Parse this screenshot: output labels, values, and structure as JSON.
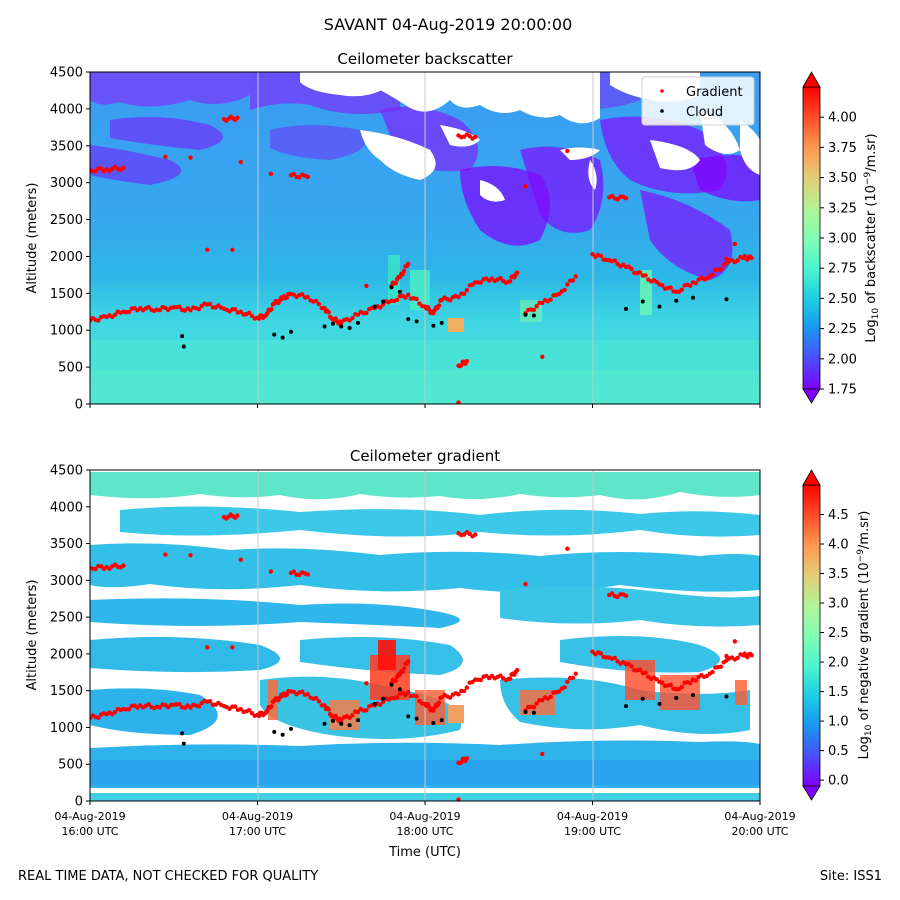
{
  "figure": {
    "title": "SAVANT 04-Aug-2019 20:00:00",
    "footer_left": "REAL TIME DATA, NOT CHECKED FOR QUALITY",
    "footer_right": "Site: ISS1"
  },
  "colors": {
    "gradient_marker": "#ff0000",
    "cloud_marker": "#000000",
    "gridline": "#c8c8c8",
    "rainbow": [
      "#8000ff",
      "#4b4dfc",
      "#1996f3",
      "#1ccee4",
      "#4ff4cf",
      "#80ffb4",
      "#b2f396",
      "#e4cd75",
      "#ff9752",
      "#ff4c28",
      "#ff0000"
    ]
  },
  "chart_data": [
    {
      "type": "heatmap",
      "title": "Ceilometer backscatter",
      "ylabel": "Altitude (meters)",
      "xlabel": "",
      "ylim": [
        0,
        4500
      ],
      "yticks": [
        "0",
        "500",
        "1000",
        "1500",
        "2000",
        "2500",
        "3000",
        "3500",
        "4000",
        "4500"
      ],
      "xlim_hours": [
        16,
        20
      ],
      "legend": {
        "position": "top-right",
        "entries": [
          "Gradient",
          "Cloud"
        ]
      },
      "colorbar": {
        "label_prefix": "Log",
        "label_sub": "10",
        "label_mid": " of backscatter (10",
        "label_sup": "−9",
        "label_suffix": "/m.sr)",
        "range": [
          1.75,
          4.25
        ],
        "ticks": [
          "1.75",
          "2.00",
          "2.25",
          "2.50",
          "2.75",
          "3.00",
          "3.25",
          "3.50",
          "3.75",
          "4.00"
        ]
      },
      "series": [
        {
          "name": "Gradient",
          "points": [
            [
              16.0,
              1130
            ],
            [
              16.1,
              1180
            ],
            [
              16.2,
              1250
            ],
            [
              16.3,
              1300
            ],
            [
              16.4,
              1280
            ],
            [
              16.5,
              1310
            ],
            [
              16.6,
              1270
            ],
            [
              16.7,
              1350
            ],
            [
              16.8,
              1290
            ],
            [
              16.9,
              1250
            ],
            [
              17.0,
              1170
            ],
            [
              17.05,
              1200
            ],
            [
              17.1,
              1360
            ],
            [
              17.15,
              1430
            ],
            [
              17.2,
              1490
            ],
            [
              17.3,
              1450
            ],
            [
              17.4,
              1300
            ],
            [
              17.45,
              1150
            ],
            [
              17.5,
              1100
            ],
            [
              17.6,
              1210
            ],
            [
              17.7,
              1300
            ],
            [
              17.8,
              1400
            ],
            [
              17.9,
              1480
            ],
            [
              18.0,
              1320
            ],
            [
              18.05,
              1230
            ],
            [
              18.1,
              1410
            ],
            [
              18.2,
              1450
            ],
            [
              18.3,
              1650
            ],
            [
              18.4,
              1700
            ],
            [
              18.5,
              1660
            ],
            [
              18.55,
              1780
            ],
            [
              18.6,
              1230
            ],
            [
              18.7,
              1370
            ],
            [
              18.8,
              1490
            ],
            [
              18.9,
              1730
            ],
            [
              19.0,
              2030
            ],
            [
              19.1,
              1950
            ],
            [
              19.2,
              1860
            ],
            [
              19.3,
              1740
            ],
            [
              19.4,
              1620
            ],
            [
              19.5,
              1520
            ],
            [
              19.6,
              1650
            ],
            [
              19.7,
              1730
            ],
            [
              19.8,
              1910
            ],
            [
              19.9,
              1980
            ],
            [
              19.95,
              1980
            ],
            [
              16.0,
              3170
            ],
            [
              16.1,
              3180
            ],
            [
              16.2,
              3200
            ],
            [
              16.45,
              3350
            ],
            [
              16.6,
              3340
            ],
            [
              16.7,
              2090
            ],
            [
              16.85,
              2090
            ],
            [
              16.8,
              3860
            ],
            [
              16.88,
              3880
            ],
            [
              16.9,
              3280
            ],
            [
              17.08,
              3120
            ],
            [
              17.2,
              3100
            ],
            [
              17.3,
              3080
            ],
            [
              18.2,
              3640
            ],
            [
              18.3,
              3620
            ],
            [
              18.6,
              2950
            ],
            [
              18.85,
              3430
            ],
            [
              19.1,
              2800
            ],
            [
              19.2,
              2790
            ],
            [
              18.2,
              520
            ],
            [
              18.25,
              580
            ],
            [
              18.7,
              640
            ],
            [
              18.2,
              20
            ],
            [
              17.8,
              1600
            ],
            [
              17.85,
              1720
            ],
            [
              17.9,
              1900
            ],
            [
              17.65,
              1600
            ],
            [
              19.85,
              2170
            ],
            [
              19.8,
              1970
            ]
          ]
        },
        {
          "name": "Cloud",
          "points": [
            [
              16.55,
              920
            ],
            [
              16.56,
              780
            ],
            [
              17.1,
              940
            ],
            [
              17.15,
              900
            ],
            [
              17.2,
              980
            ],
            [
              17.4,
              1050
            ],
            [
              17.45,
              1090
            ],
            [
              17.5,
              1050
            ],
            [
              17.55,
              1030
            ],
            [
              17.6,
              1100
            ],
            [
              17.7,
              1320
            ],
            [
              17.75,
              1390
            ],
            [
              17.8,
              1580
            ],
            [
              17.85,
              1520
            ],
            [
              17.9,
              1150
            ],
            [
              17.95,
              1120
            ],
            [
              18.05,
              1060
            ],
            [
              18.1,
              1100
            ],
            [
              18.6,
              1210
            ],
            [
              18.65,
              1200
            ],
            [
              19.2,
              1290
            ],
            [
              19.3,
              1390
            ],
            [
              19.4,
              1320
            ],
            [
              19.5,
              1400
            ],
            [
              19.6,
              1440
            ],
            [
              19.8,
              1420
            ]
          ]
        }
      ]
    },
    {
      "type": "heatmap",
      "title": "Ceilometer gradient",
      "ylabel": "Altitude (meters)",
      "xlabel": "Time (UTC)",
      "ylim": [
        0,
        4500
      ],
      "yticks": [
        "0",
        "500",
        "1000",
        "1500",
        "2000",
        "2500",
        "3000",
        "3500",
        "4000",
        "4500"
      ],
      "xlim_hours": [
        16,
        20
      ],
      "xticks": [
        {
          "hour": 16,
          "date": "04-Aug-2019",
          "time": "16:00 UTC"
        },
        {
          "hour": 17,
          "date": "04-Aug-2019",
          "time": "17:00 UTC"
        },
        {
          "hour": 18,
          "date": "04-Aug-2019",
          "time": "18:00 UTC"
        },
        {
          "hour": 19,
          "date": "04-Aug-2019",
          "time": "19:00 UTC"
        },
        {
          "hour": 20,
          "date": "04-Aug-2019",
          "time": "20:00 UTC"
        }
      ],
      "colorbar": {
        "label_prefix": "Log",
        "label_sub": "10",
        "label_mid": " of negative gradient (10",
        "label_sup": "−9",
        "label_suffix": "/m.sr)",
        "range": [
          -0.1,
          5.0
        ],
        "ticks": [
          "0.0",
          "0.5",
          "1.0",
          "1.5",
          "2.0",
          "2.5",
          "3.0",
          "3.5",
          "4.0",
          "4.5"
        ]
      },
      "series": [
        {
          "name": "Gradient",
          "points": [
            [
              16.0,
              1130
            ],
            [
              16.1,
              1180
            ],
            [
              16.2,
              1250
            ],
            [
              16.3,
              1300
            ],
            [
              16.4,
              1280
            ],
            [
              16.5,
              1310
            ],
            [
              16.6,
              1270
            ],
            [
              16.7,
              1350
            ],
            [
              16.8,
              1290
            ],
            [
              16.9,
              1250
            ],
            [
              17.0,
              1170
            ],
            [
              17.05,
              1200
            ],
            [
              17.1,
              1360
            ],
            [
              17.15,
              1430
            ],
            [
              17.2,
              1490
            ],
            [
              17.3,
              1450
            ],
            [
              17.4,
              1300
            ],
            [
              17.45,
              1150
            ],
            [
              17.5,
              1100
            ],
            [
              17.6,
              1210
            ],
            [
              17.7,
              1300
            ],
            [
              17.8,
              1400
            ],
            [
              17.9,
              1480
            ],
            [
              18.0,
              1320
            ],
            [
              18.05,
              1230
            ],
            [
              18.1,
              1410
            ],
            [
              18.2,
              1450
            ],
            [
              18.3,
              1650
            ],
            [
              18.4,
              1700
            ],
            [
              18.5,
              1660
            ],
            [
              18.55,
              1780
            ],
            [
              18.6,
              1230
            ],
            [
              18.7,
              1370
            ],
            [
              18.8,
              1490
            ],
            [
              18.9,
              1730
            ],
            [
              19.0,
              2030
            ],
            [
              19.1,
              1950
            ],
            [
              19.2,
              1860
            ],
            [
              19.3,
              1740
            ],
            [
              19.4,
              1620
            ],
            [
              19.5,
              1520
            ],
            [
              19.6,
              1650
            ],
            [
              19.7,
              1730
            ],
            [
              19.8,
              1910
            ],
            [
              19.9,
              1980
            ],
            [
              19.95,
              1980
            ],
            [
              16.0,
              3170
            ],
            [
              16.1,
              3180
            ],
            [
              16.2,
              3200
            ],
            [
              16.45,
              3350
            ],
            [
              16.6,
              3340
            ],
            [
              16.7,
              2090
            ],
            [
              16.85,
              2090
            ],
            [
              16.8,
              3860
            ],
            [
              16.88,
              3880
            ],
            [
              16.9,
              3280
            ],
            [
              17.08,
              3120
            ],
            [
              17.2,
              3100
            ],
            [
              17.3,
              3080
            ],
            [
              18.2,
              3640
            ],
            [
              18.3,
              3620
            ],
            [
              18.6,
              2950
            ],
            [
              18.85,
              3430
            ],
            [
              19.1,
              2800
            ],
            [
              19.2,
              2790
            ],
            [
              18.2,
              520
            ],
            [
              18.25,
              580
            ],
            [
              18.7,
              640
            ],
            [
              18.2,
              20
            ],
            [
              17.8,
              1600
            ],
            [
              17.85,
              1720
            ],
            [
              17.9,
              1900
            ],
            [
              17.65,
              1600
            ],
            [
              19.85,
              2170
            ],
            [
              19.8,
              1970
            ]
          ]
        },
        {
          "name": "Cloud",
          "points": [
            [
              16.55,
              920
            ],
            [
              16.56,
              780
            ],
            [
              17.1,
              940
            ],
            [
              17.15,
              900
            ],
            [
              17.2,
              980
            ],
            [
              17.4,
              1050
            ],
            [
              17.45,
              1090
            ],
            [
              17.5,
              1050
            ],
            [
              17.55,
              1030
            ],
            [
              17.6,
              1100
            ],
            [
              17.7,
              1320
            ],
            [
              17.75,
              1390
            ],
            [
              17.8,
              1580
            ],
            [
              17.85,
              1520
            ],
            [
              17.9,
              1150
            ],
            [
              17.95,
              1120
            ],
            [
              18.05,
              1060
            ],
            [
              18.1,
              1100
            ],
            [
              18.6,
              1210
            ],
            [
              18.65,
              1200
            ],
            [
              19.2,
              1290
            ],
            [
              19.3,
              1390
            ],
            [
              19.4,
              1320
            ],
            [
              19.5,
              1400
            ],
            [
              19.6,
              1440
            ],
            [
              19.8,
              1420
            ]
          ]
        }
      ]
    }
  ]
}
